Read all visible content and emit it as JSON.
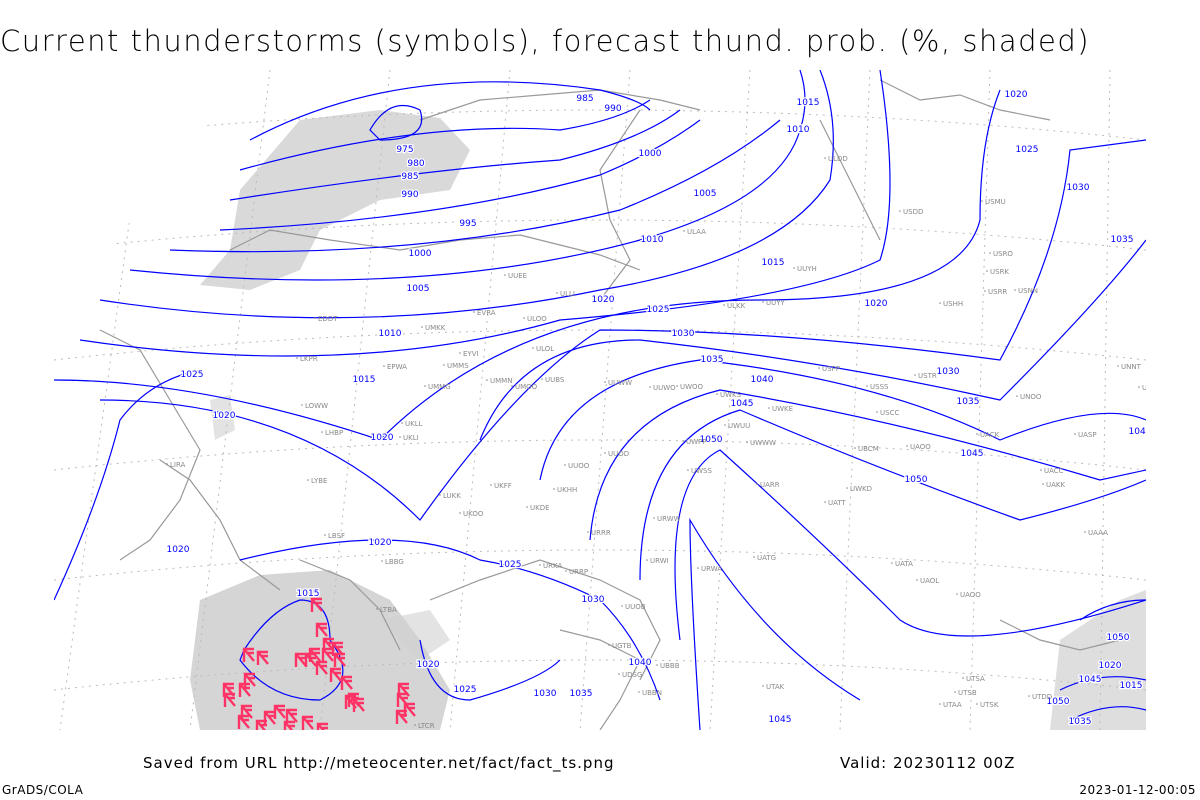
{
  "title": "Current thunderstorms (symbols), forecast thund. prob. (%, shaded)",
  "footer": {
    "saved_from": "Saved from URL http://meteocenter.net/fact/fact_ts.png",
    "valid": "Valid: 20230112 00Z",
    "software": "GrADS/COLA",
    "timestamp": "2023-01-12-00:05"
  },
  "colors": {
    "isobar": "#0000ff",
    "coastline": "#999999",
    "shading": "#d0d0d0",
    "thunderstorm_symbol": "#ff3366",
    "station_label": "#888888"
  },
  "isobar_labels": [
    "975",
    "980",
    "985",
    "990",
    "995",
    "1000",
    "1005",
    "1010",
    "1015",
    "1020",
    "1020",
    "1025",
    "1020",
    "1020",
    "1015",
    "1020",
    "1025",
    "1030",
    "1035",
    "1025",
    "1030",
    "1040",
    "985",
    "990",
    "1000",
    "1005",
    "1010",
    "1015",
    "1020",
    "1025",
    "1030",
    "1035",
    "1040",
    "1045",
    "1050",
    "1015",
    "1010",
    "1020",
    "1030",
    "1035",
    "1045",
    "1050",
    "1020",
    "1025",
    "1030",
    "1035",
    "1040",
    "1045",
    "1020",
    "1015",
    "1050",
    "1050",
    "1035",
    "1045"
  ],
  "stations": [
    "EDDT",
    "UMKK",
    "EVRA",
    "ULOO",
    "ULOL",
    "EYVI",
    "EPWA",
    "UMMS",
    "UMMG",
    "UMMN",
    "UMOO",
    "UUBS",
    "UUWW",
    "UWOO",
    "UWKS",
    "UWKE",
    "USPP",
    "USSS",
    "USCC",
    "USTR",
    "UNOO",
    "UACK",
    "UASP",
    "UAOO",
    "UBCM",
    "UKLL",
    "UKLI",
    "LHBP",
    "LOWW",
    "LKPR",
    "LIRA",
    "LYBE",
    "LUKK",
    "UKOO",
    "UKFF",
    "UKDE",
    "UKHH",
    "UUOO",
    "UUOD",
    "URWW",
    "UWWW",
    "URRR",
    "URWI",
    "URWA",
    "UATG",
    "UARR",
    "UATT",
    "LBSF",
    "LBBG",
    "LTBA",
    "URKA",
    "URRP",
    "ULAA",
    "ULLI",
    "ULKK",
    "UUYY",
    "UUYH",
    "ULDD",
    "USDD",
    "USMU",
    "USRO",
    "USRK",
    "USRR",
    "USNN",
    "USHH",
    "UNNT",
    "UNBB",
    "UAKK",
    "UACC",
    "UAAA",
    "UATA",
    "UAOL",
    "UAOO",
    "UTSA",
    "UTSB",
    "UTSK",
    "UTDD",
    "UTAA",
    "UBBB",
    "UGTB",
    "UDSG",
    "UTAK",
    "UBBN",
    "UUEE",
    "UUWO",
    "UWPP",
    "UWSS",
    "UWUU",
    "UWKD",
    "LTCR",
    "UUOB"
  ],
  "thunderstorm_count": 34
}
